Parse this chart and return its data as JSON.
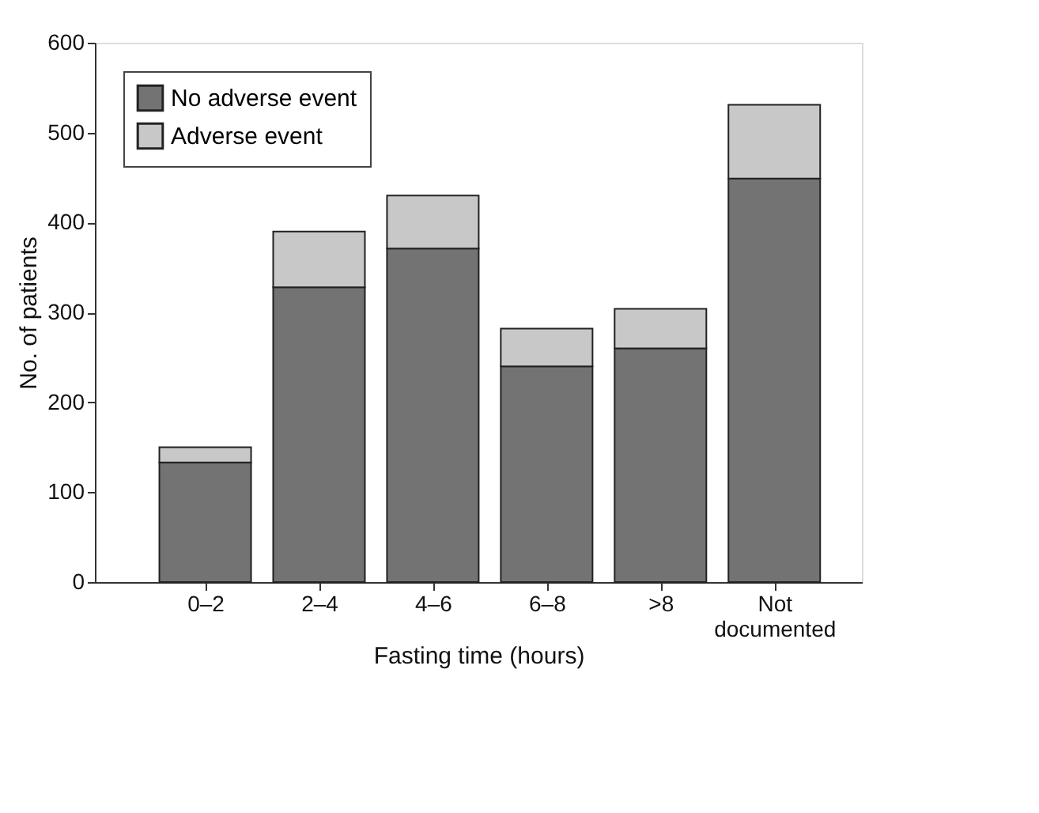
{
  "chart_data": {
    "type": "bar",
    "stacked": true,
    "xlabel": "Fasting time (hours)",
    "ylabel": "No. of patients",
    "categories": [
      "0–2",
      "2–4",
      "4–6",
      "6–8",
      ">8",
      "Not documented"
    ],
    "series": [
      {
        "name": "No adverse event",
        "color": "#737373",
        "values": [
          133,
          328,
          371,
          240,
          260,
          449
        ]
      },
      {
        "name": "Adverse event",
        "color": "#c8c8c8",
        "values": [
          17,
          62,
          59,
          42,
          44,
          82
        ]
      }
    ],
    "ylim": [
      0,
      600
    ],
    "yticks": [
      0,
      100,
      200,
      300,
      400,
      500,
      600
    ],
    "grid": false,
    "legend": "top left"
  }
}
